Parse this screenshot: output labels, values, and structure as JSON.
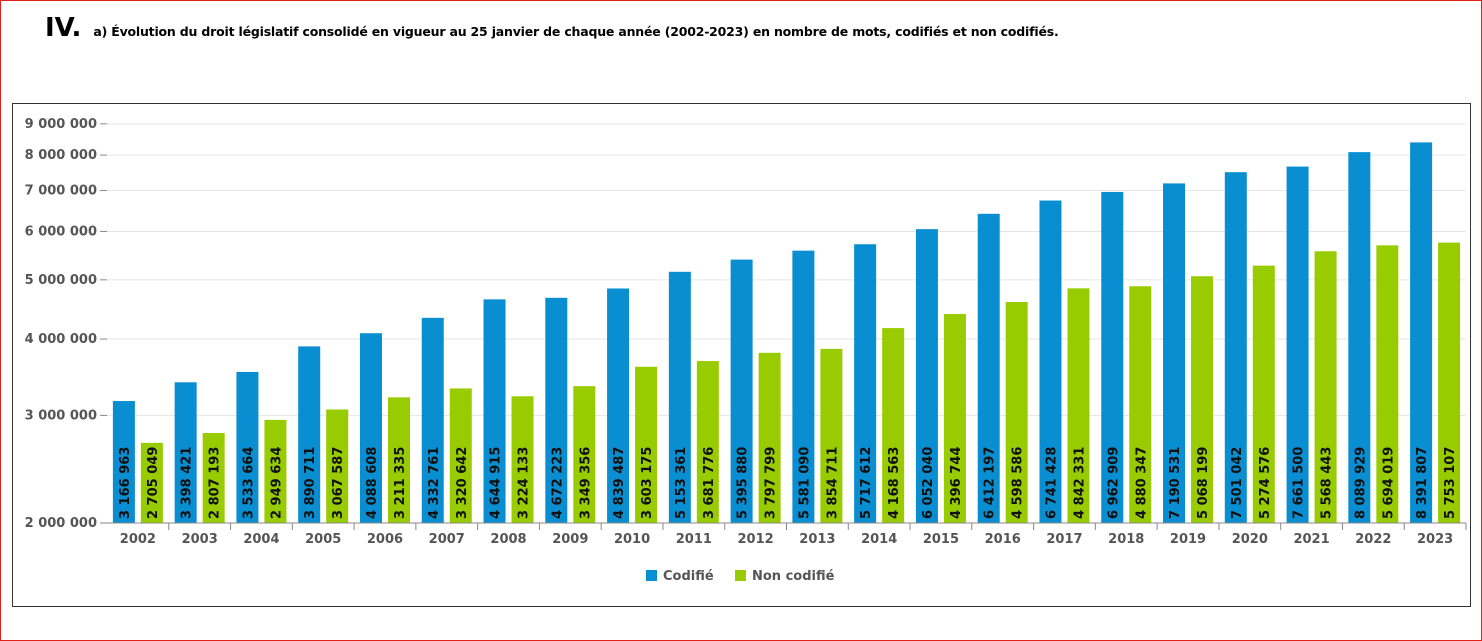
{
  "header": {
    "number": "IV.",
    "text": "a) Évolution du droit législatif consolidé en vigueur au 25 janvier de chaque année (2002-2023) en nombre de mots, codifiés et non codifiés."
  },
  "colors": {
    "frame": "#e0201a",
    "codifie": "#0a8ed2",
    "non_codifie": "#99cc00",
    "grid": "#e6e6e6",
    "axis": "#888888"
  },
  "chart_data": {
    "type": "bar",
    "title": "",
    "xlabel": "",
    "ylabel": "",
    "y_scale": "log",
    "ylim": [
      2000000,
      9200000
    ],
    "grid": true,
    "legend_position": "bottom-center",
    "y_ticks": [
      2000000,
      3000000,
      4000000,
      5000000,
      6000000,
      7000000,
      8000000,
      9000000
    ],
    "y_tick_labels": [
      "2 000 000",
      "3 000 000",
      "4 000 000",
      "5 000 000",
      "6 000 000",
      "7 000 000",
      "8 000 000",
      "9 000 000"
    ],
    "categories": [
      "2002",
      "2003",
      "2004",
      "2005",
      "2006",
      "2007",
      "2008",
      "2009",
      "2010",
      "2011",
      "2012",
      "2013",
      "2014",
      "2015",
      "2016",
      "2017",
      "2018",
      "2019",
      "2020",
      "2021",
      "2022",
      "2023"
    ],
    "series": [
      {
        "name": "Codifié",
        "color": "#0a8ed2",
        "values": [
          3166963,
          3398421,
          3533664,
          3890711,
          4088608,
          4332761,
          4644915,
          4672223,
          4839487,
          5153361,
          5395880,
          5581090,
          5717612,
          6052040,
          6412197,
          6741428,
          6962909,
          7190531,
          7501042,
          7661500,
          8089929,
          8391807
        ],
        "labels": [
          "3 166 963",
          "3 398 421",
          "3 533 664",
          "3 890 711",
          "4 088 608",
          "4 332 761",
          "4 644 915",
          "4 672 223",
          "4 839 487",
          "5 153 361",
          "5 395 880",
          "5 581 090",
          "5 717 612",
          "6 052 040",
          "6 412 197",
          "6 741 428",
          "6 962 909",
          "7 190 531",
          "7 501 042",
          "7 661 500",
          "8 089 929",
          "8 391 807"
        ]
      },
      {
        "name": "Non codifié",
        "color": "#99cc00",
        "values": [
          2705049,
          2807193,
          2949634,
          3067587,
          3211335,
          3320642,
          3224133,
          3349356,
          3603175,
          3681776,
          3797799,
          3854711,
          4168563,
          4396744,
          4598586,
          4842331,
          4880347,
          5068199,
          5274576,
          5568443,
          5694019,
          5753107
        ],
        "labels": [
          "2 705 049",
          "2 807 193",
          "2 949 634",
          "3 067 587",
          "3 211 335",
          "3 320 642",
          "3 224 133",
          "3 349 356",
          "3 603 175",
          "3 681 776",
          "3 797 799",
          "3 854 711",
          "4 168 563",
          "4 396 744",
          "4 598 586",
          "4 842 331",
          "4 880 347",
          "5 068 199",
          "5 274 576",
          "5 568 443",
          "5 694 019",
          "5 753 107"
        ]
      }
    ]
  }
}
